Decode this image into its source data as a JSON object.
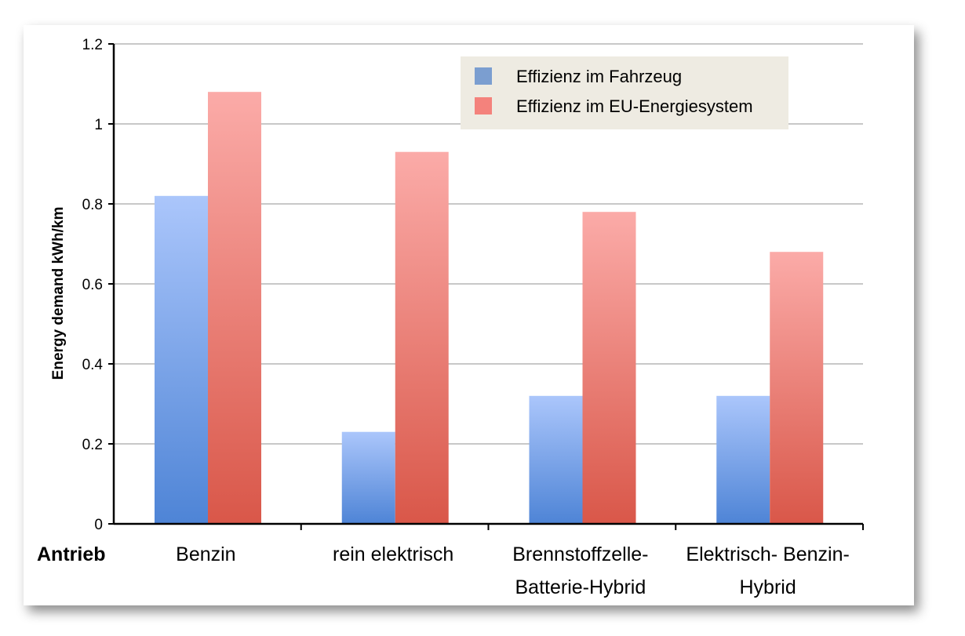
{
  "chart_data": {
    "type": "bar",
    "title": "",
    "xlabel": "Antrieb",
    "ylabel": "Energy demand kWh/km",
    "ylim": [
      0,
      1.2
    ],
    "yticks": [
      "0",
      "0.2",
      "0.4",
      "0.6",
      "0.8",
      "1",
      "1.2"
    ],
    "categories": [
      [
        "Benzin"
      ],
      [
        "rein elektrisch"
      ],
      [
        "Brennstoffzelle-",
        "Batterie-Hybrid"
      ],
      [
        "Elektrisch- Benzin-",
        "Hybrid"
      ]
    ],
    "series": [
      {
        "name": "Effizienz im Fahrzeug",
        "values": [
          0.82,
          0.23,
          0.32,
          0.32
        ],
        "color": "#7b9ed0",
        "grad_top": "#abc6fb",
        "grad_bottom": "#4e84d6"
      },
      {
        "name": "Effizienz im EU-Energiesystem",
        "values": [
          1.08,
          0.93,
          0.78,
          0.68
        ],
        "color": "#f4827c",
        "grad_top": "#fbaba8",
        "grad_bottom": "#d95749"
      }
    ],
    "legend_position": "top-right",
    "grid": true
  }
}
